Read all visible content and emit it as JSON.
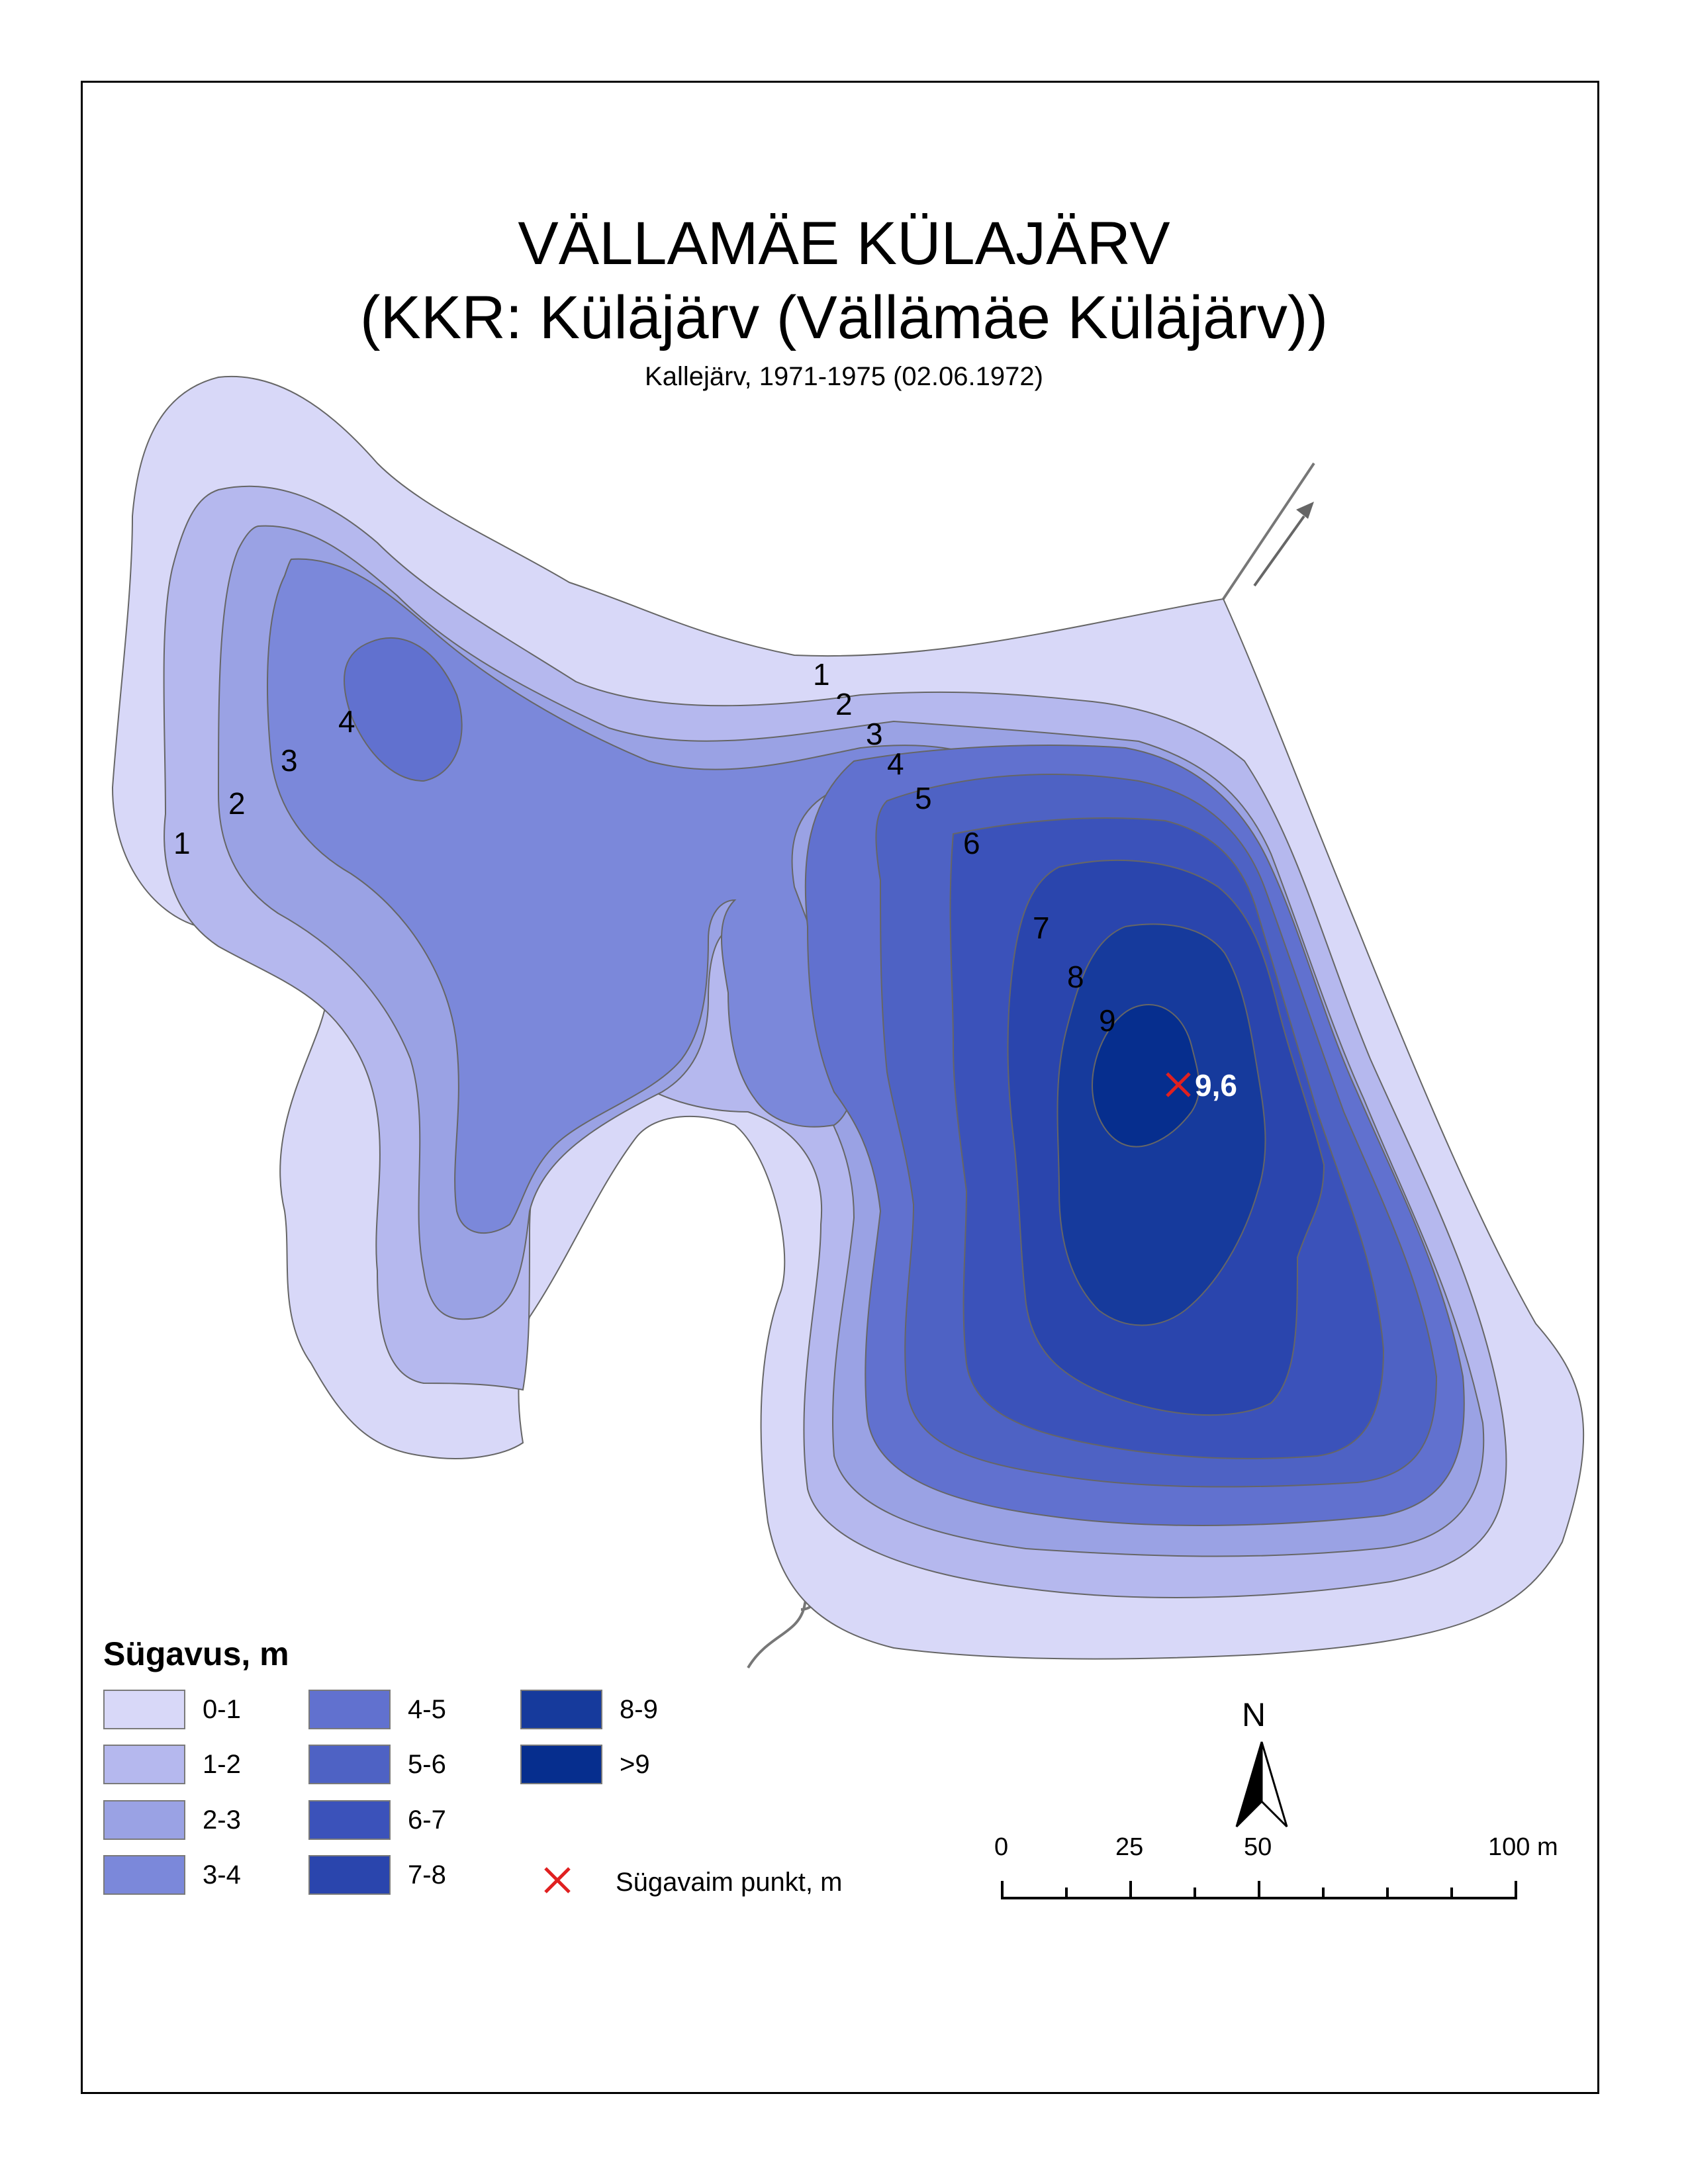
{
  "title": {
    "main": "VÄLLAMÄE KÜLAJÄRV",
    "sub": "(KKR: Küläjärv (Vällämäe Küläjärv))",
    "meta": "Kallejärv, 1971-1975 (02.06.1972)"
  },
  "map": {
    "contour_labels": [
      "1",
      "2",
      "3",
      "4",
      "1",
      "2",
      "3",
      "4",
      "5",
      "6",
      "7",
      "8",
      "9"
    ],
    "deepest_point_value": "9,6",
    "outflow_arrow_icon": "arrow-ne-icon"
  },
  "legend": {
    "title": "Sügavus, m",
    "classes": [
      {
        "label": "0-1",
        "color": "#d8d8f8"
      },
      {
        "label": "1-2",
        "color": "#b5b8ee"
      },
      {
        "label": "2-3",
        "color": "#9aa2e4"
      },
      {
        "label": "3-4",
        "color": "#7b88da"
      },
      {
        "label": "4-5",
        "color": "#6171cf"
      },
      {
        "label": "5-6",
        "color": "#4e62c4"
      },
      {
        "label": "6-7",
        "color": "#3b52ba"
      },
      {
        "label": "7-8",
        "color": "#2a45ad"
      },
      {
        "label": "8-9",
        "color": "#163a9c"
      },
      {
        "label": ">9",
        "color": "#062e8e"
      }
    ],
    "deepest_point": {
      "label": "Sügavaim punkt, m",
      "color": "#e02020",
      "icon": "x-mark-icon"
    }
  },
  "north_arrow": {
    "label": "N"
  },
  "scale_bar": {
    "labels": [
      "0",
      "25",
      "50",
      "100 m"
    ]
  }
}
